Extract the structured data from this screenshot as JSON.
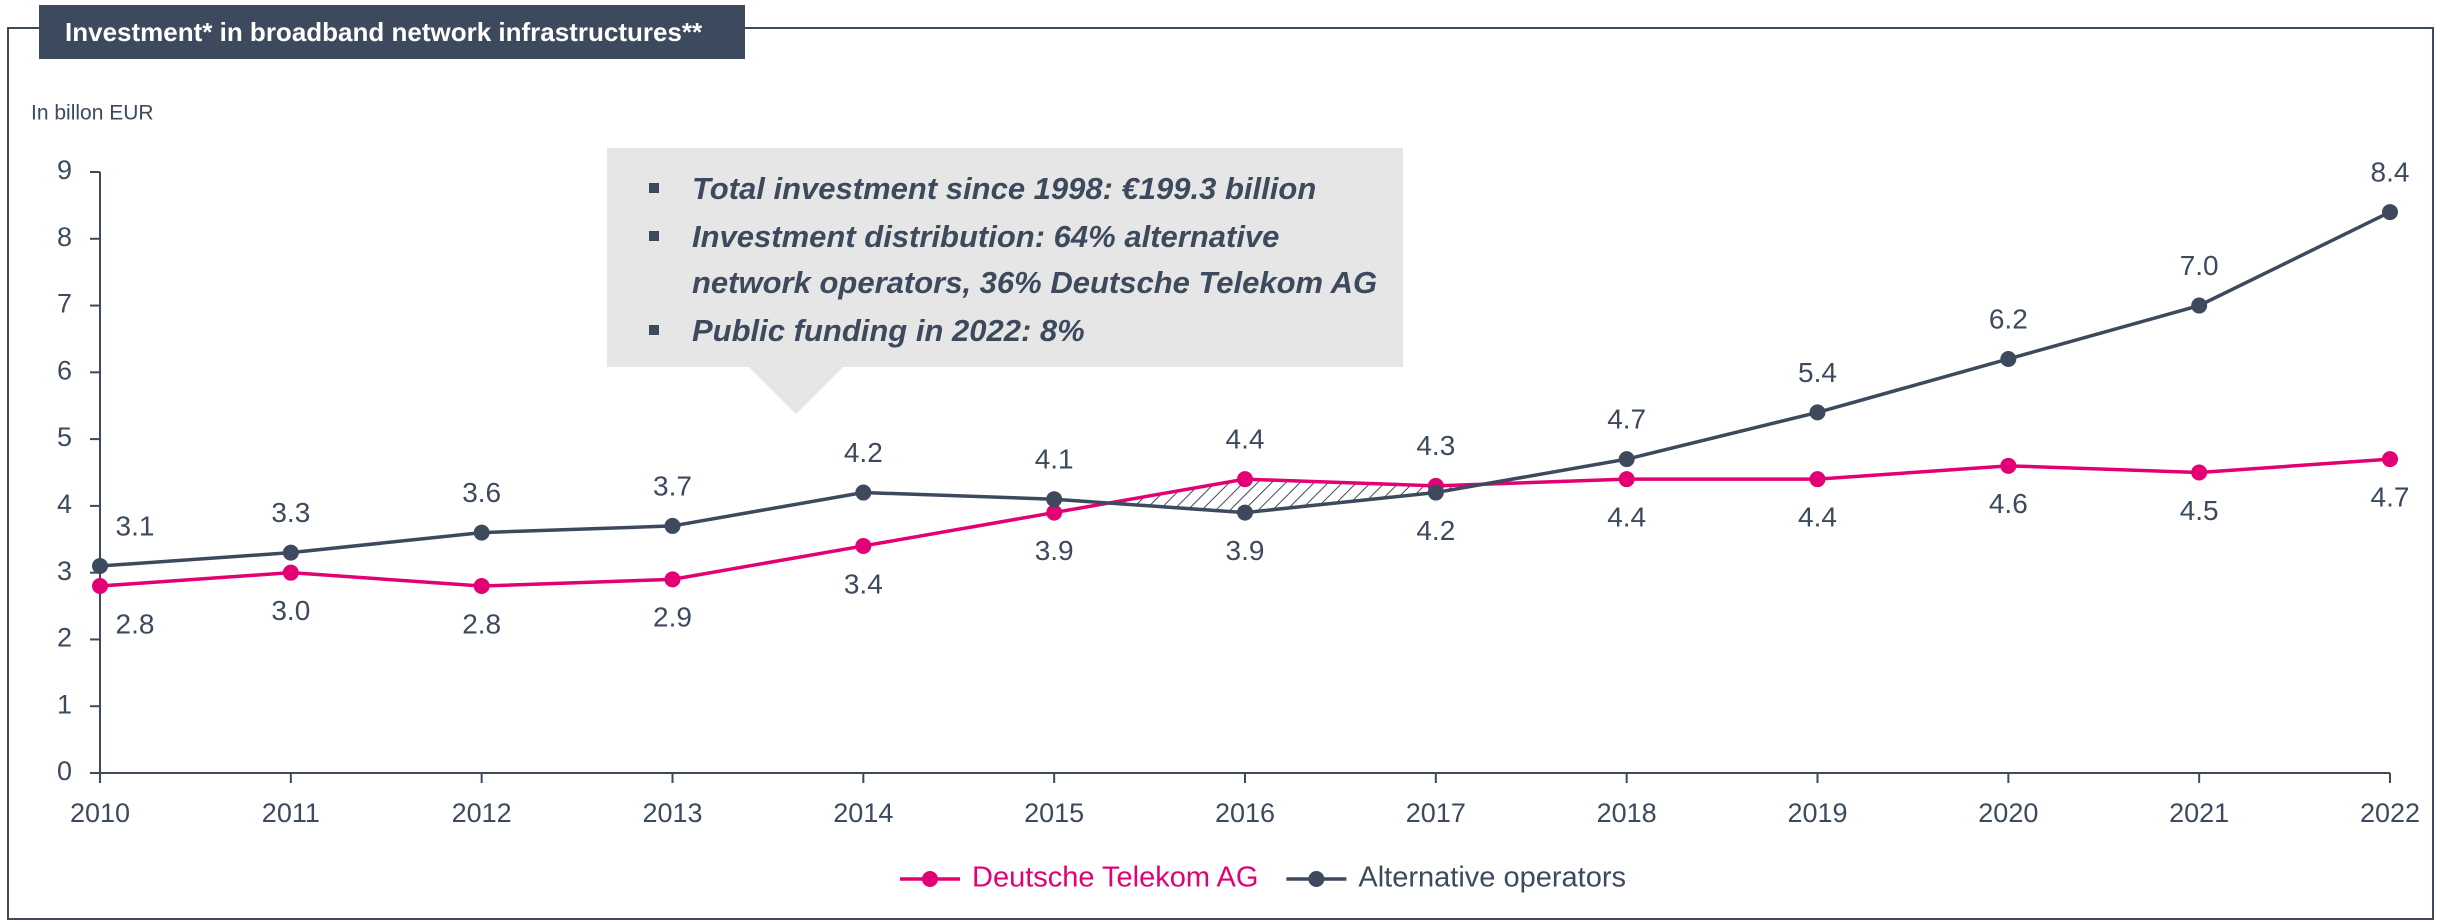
{
  "chart_data": {
    "type": "line",
    "title": "Investment* in broadband network infrastructures**",
    "y_label": "In billon EUR",
    "callout": [
      "Total investment since 1998: €199.3 billion",
      "Investment distribution: 64% alternative network operators, 36% Deutsche Telekom AG",
      "Public funding in 2022: 8%"
    ],
    "categories": [
      "2010",
      "2011",
      "2012",
      "2013",
      "2014",
      "2015",
      "2016",
      "2017",
      "2018",
      "2019",
      "2020",
      "2021",
      "2022"
    ],
    "series": [
      {
        "name": "Deutsche Telekom AG",
        "color": "#e20074",
        "values": [
          2.8,
          3.0,
          2.8,
          2.9,
          3.4,
          3.9,
          4.4,
          4.3,
          4.4,
          4.4,
          4.6,
          4.5,
          4.7
        ],
        "value_labels": [
          "2.8",
          "3.0",
          "2.8",
          "2.9",
          "3.4",
          "3.9",
          "4.4",
          "4.3",
          "4.4",
          "4.4",
          "4.6",
          "4.5",
          "4.7"
        ]
      },
      {
        "name": "Alternative operators",
        "color": "#3d4a5e",
        "values": [
          3.1,
          3.3,
          3.6,
          3.7,
          4.2,
          4.1,
          3.9,
          4.2,
          4.7,
          5.4,
          6.2,
          7.0,
          8.4
        ],
        "value_labels": [
          "3.1",
          "3.3",
          "3.6",
          "3.7",
          "4.2",
          "4.1",
          "3.9",
          "4.2",
          "4.7",
          "5.4",
          "6.2",
          "7.0",
          "8.4"
        ]
      }
    ],
    "ylim": [
      0,
      9
    ],
    "yticks": [
      0,
      1,
      2,
      3,
      4,
      5,
      6,
      7,
      8,
      9
    ],
    "legend": "bottom"
  }
}
